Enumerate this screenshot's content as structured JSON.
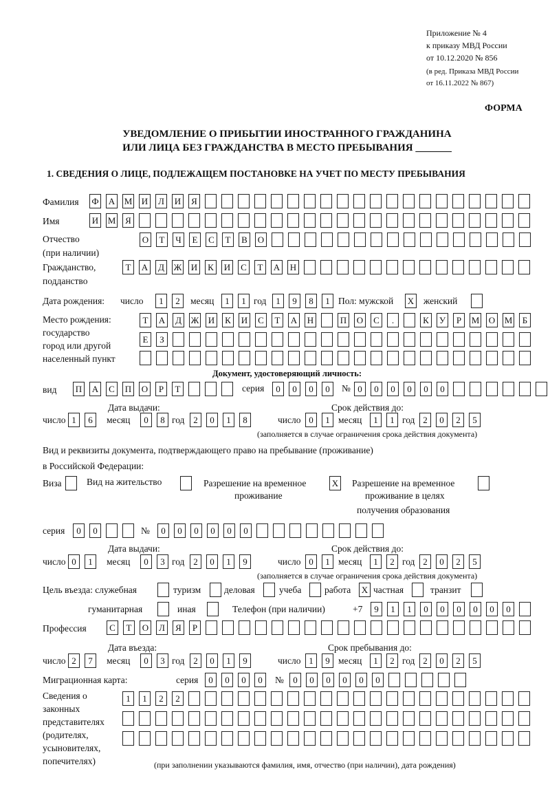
{
  "header": {
    "line1": "Приложение № 4",
    "line2": "к приказу МВД России",
    "line3": "от 10.12.2020 № 856",
    "line4": "(в ред. Приказа МВД России",
    "line5": "от 16.11.2022 № 867)",
    "forma": "ФОРМА"
  },
  "title": {
    "line1": "УВЕДОМЛЕНИЕ О ПРИБЫТИИ ИНОСТРАННОГО ГРАЖДАНИНА",
    "line2": "ИЛИ ЛИЦА БЕЗ ГРАЖДАНСТВА В МЕСТО ПРЕБЫВАНИЯ _______"
  },
  "section": "1. СВЕДЕНИЯ О ЛИЦЕ, ПОДЛЕЖАЩЕМ ПОСТАНОВКЕ НА УЧЕТ ПО МЕСТУ ПРЕБЫВАНИЯ",
  "labels": {
    "surname": "Фамилия",
    "name": "Имя",
    "patronymic1": "Отчество",
    "patronymic2": "(при наличии)",
    "citizenship1": "Гражданство,",
    "citizenship2": "подданство",
    "birth_date": "Дата рождения:",
    "day": "число",
    "month": "месяц",
    "year": "год",
    "sex": "Пол: мужской",
    "female": "женский",
    "birth_place1": "Место рождения:",
    "birth_place2": "государство",
    "birth_place3": "город или другой",
    "birth_place4": "населенный пункт",
    "id_doc": "Документ, удостоверяющий личность:",
    "kind": "вид",
    "series": "серия",
    "number": "№",
    "issue_date": "Дата выдачи:",
    "valid_until": "Срок действия до:",
    "validity_note": "(заполняется в случае ограничения срока действия документа)",
    "right_doc1": "Вид и реквизиты документа, подтверждающего право на пребывание (проживание)",
    "right_doc2": "в Российской Федерации:",
    "visa": "Виза",
    "residence": "Вид на жительство",
    "temp1": "Разрешение на временное",
    "temp2": "проживание",
    "edu1": "Разрешение на временное",
    "edu2": "проживание в целях",
    "edu3": "получения образования",
    "purpose": "Цель въезда: служебная",
    "tourism": "туризм",
    "business": "деловая",
    "study": "учеба",
    "work": "работа",
    "private": "частная",
    "transit": "транзит",
    "humanitarian": "гуманитарная",
    "other": "иная",
    "phone": "Телефон (при наличии)",
    "phone_prefix": "+7",
    "profession": "Профессия",
    "entry_date": "Дата въезда:",
    "stay_until": "Срок пребывания до:",
    "migration_card": "Миграционная карта:",
    "reps1": "Сведения о",
    "reps2": "законных",
    "reps3": "представителях",
    "reps4": "(родителях,",
    "reps5": "усыновителях,",
    "reps6": "попечителях)",
    "reps_note": "(при заполнении указываются фамилия, имя, отчество (при наличии), дата рождения)"
  },
  "fields": {
    "surname": {
      "chars": [
        "Ф",
        "А",
        "М",
        "И",
        "Л",
        "И",
        "Я"
      ],
      "boxes": 27
    },
    "name": {
      "chars": [
        "И",
        "М",
        "Я"
      ],
      "boxes": 27
    },
    "patronymic": {
      "chars": [
        "О",
        "Т",
        "Ч",
        "Е",
        "С",
        "Т",
        "В",
        "О"
      ],
      "boxes": 24
    },
    "citizenship": {
      "chars": [
        "Т",
        "А",
        "Д",
        "Ж",
        "И",
        "К",
        "И",
        "С",
        "Т",
        "А",
        "Н"
      ],
      "boxes": 25
    },
    "birth_day": {
      "chars": [
        "1",
        "2"
      ],
      "boxes": 2
    },
    "birth_month": {
      "chars": [
        "1",
        "1"
      ],
      "boxes": 2
    },
    "birth_year": {
      "chars": [
        "1",
        "9",
        "8",
        "1"
      ],
      "boxes": 4
    },
    "sex_male": {
      "chars": [
        "X"
      ],
      "boxes": 1
    },
    "sex_female": {
      "chars": [],
      "boxes": 1
    },
    "birth_place_1": {
      "chars": [
        "Т",
        "А",
        "Д",
        "Ж",
        "И",
        "К",
        "И",
        "С",
        "Т",
        "А",
        "Н",
        "",
        "П",
        "О",
        "С",
        ".",
        "",
        "К",
        "У",
        "Р",
        "М",
        "О",
        "М",
        "Б"
      ],
      "boxes": 24
    },
    "birth_place_2": {
      "chars": [
        "Е",
        "З"
      ],
      "boxes": 24
    },
    "birth_place_3": {
      "chars": [],
      "boxes": 24
    },
    "id_kind": {
      "chars": [
        "П",
        "А",
        "С",
        "П",
        "О",
        "Р",
        "Т"
      ],
      "boxes": 10
    },
    "id_series": {
      "chars": [
        "0",
        "0",
        "0",
        "0"
      ],
      "boxes": 4
    },
    "id_number": {
      "chars": [
        "0",
        "0",
        "0",
        "0",
        "0",
        "0"
      ],
      "boxes": 12
    },
    "id_issue_day": {
      "chars": [
        "1",
        "6"
      ],
      "boxes": 2
    },
    "id_issue_month": {
      "chars": [
        "0",
        "8"
      ],
      "boxes": 2
    },
    "id_issue_year": {
      "chars": [
        "2",
        "0",
        "1",
        "8"
      ],
      "boxes": 4
    },
    "id_valid_day": {
      "chars": [
        "0",
        "1"
      ],
      "boxes": 2
    },
    "id_valid_month": {
      "chars": [
        "1",
        "1"
      ],
      "boxes": 2
    },
    "id_valid_year": {
      "chars": [
        "2",
        "0",
        "2",
        "5"
      ],
      "boxes": 4
    },
    "visa": {
      "chars": [],
      "boxes": 1
    },
    "residence": {
      "chars": [],
      "boxes": 1
    },
    "temp_residence": {
      "chars": [
        "X"
      ],
      "boxes": 1
    },
    "edu_residence": {
      "chars": [],
      "boxes": 1
    },
    "rd_series": {
      "chars": [
        "0",
        "0"
      ],
      "boxes": 4
    },
    "rd_number": {
      "chars": [
        "0",
        "0",
        "0",
        "0",
        "0",
        "0"
      ],
      "boxes": 14
    },
    "rd_issue_day": {
      "chars": [
        "0",
        "1"
      ],
      "boxes": 2
    },
    "rd_issue_month": {
      "chars": [
        "0",
        "3"
      ],
      "boxes": 2
    },
    "rd_issue_year": {
      "chars": [
        "2",
        "0",
        "1",
        "9"
      ],
      "boxes": 4
    },
    "rd_valid_day": {
      "chars": [
        "0",
        "1"
      ],
      "boxes": 2
    },
    "rd_valid_month": {
      "chars": [
        "1",
        "2"
      ],
      "boxes": 2
    },
    "rd_valid_year": {
      "chars": [
        "2",
        "0",
        "2",
        "5"
      ],
      "boxes": 4
    },
    "p_official": {
      "chars": [],
      "boxes": 1
    },
    "p_tourism": {
      "chars": [],
      "boxes": 1
    },
    "p_business": {
      "chars": [],
      "boxes": 1
    },
    "p_study": {
      "chars": [],
      "boxes": 1
    },
    "p_work": {
      "chars": [
        "X"
      ],
      "boxes": 1
    },
    "p_private": {
      "chars": [],
      "boxes": 1
    },
    "p_transit": {
      "chars": [],
      "boxes": 1
    },
    "p_humanitarian": {
      "chars": [],
      "boxes": 1
    },
    "p_other": {
      "chars": [],
      "boxes": 1
    },
    "phone": {
      "chars": [
        "9",
        "1",
        "1",
        "0",
        "0",
        "0",
        "0",
        "0",
        "0"
      ],
      "boxes": 10
    },
    "profession": {
      "chars": [
        "С",
        "Т",
        "О",
        "Л",
        "Я",
        "Р"
      ],
      "boxes": 26
    },
    "entry_day": {
      "chars": [
        "2",
        "7"
      ],
      "boxes": 2
    },
    "entry_month": {
      "chars": [
        "0",
        "3"
      ],
      "boxes": 2
    },
    "entry_year": {
      "chars": [
        "2",
        "0",
        "1",
        "9"
      ],
      "boxes": 4
    },
    "stay_day": {
      "chars": [
        "1",
        "9"
      ],
      "boxes": 2
    },
    "stay_month": {
      "chars": [
        "1",
        "2"
      ],
      "boxes": 2
    },
    "stay_year": {
      "chars": [
        "2",
        "0",
        "2",
        "5"
      ],
      "boxes": 4
    },
    "mc_series": {
      "chars": [
        "0",
        "0",
        "0",
        "0"
      ],
      "boxes": 4
    },
    "mc_number": {
      "chars": [
        "0",
        "0",
        "0",
        "0",
        "0",
        "0"
      ],
      "boxes": 11
    },
    "reps_1": {
      "chars": [
        "1",
        "1",
        "2",
        "2"
      ],
      "boxes": 25
    },
    "reps_2": {
      "chars": [],
      "boxes": 25
    },
    "reps_3": {
      "chars": [],
      "boxes": 25
    }
  }
}
